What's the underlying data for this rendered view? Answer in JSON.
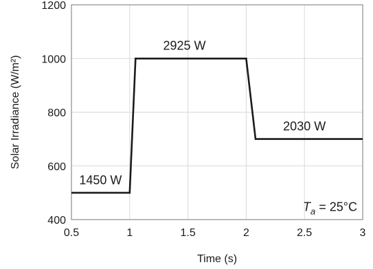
{
  "chart_data": {
    "type": "line",
    "xlabel": "Time (s)",
    "ylabel": "Solar Irradiance (W/m²)",
    "xlim": [
      0.5,
      3
    ],
    "ylim": [
      400,
      1200
    ],
    "xticks": [
      0.5,
      1,
      1.5,
      2,
      2.5,
      3
    ],
    "yticks": [
      400,
      600,
      800,
      1000,
      1200
    ],
    "xtick_labels": [
      "0.5",
      "1",
      "1.5",
      "2",
      "2.5",
      "3"
    ],
    "ytick_labels": [
      "400",
      "600",
      "800",
      "1000",
      "1200"
    ],
    "grid": true,
    "legend": "none",
    "series": [
      {
        "x": [
          0.5,
          1.0,
          1.05,
          2.0,
          2.08,
          3.0
        ],
        "y": [
          500,
          500,
          1000,
          1000,
          700,
          700
        ],
        "color": "#1a1a1a"
      }
    ],
    "annotations": [
      {
        "text": "1450 W",
        "x": 0.75,
        "y": 550
      },
      {
        "text": "2925 W",
        "x": 1.47,
        "y": 1050
      },
      {
        "text": "2030 W",
        "x": 2.5,
        "y": 750
      }
    ],
    "note": {
      "symbol": "T",
      "subscript": "a",
      "rest": " = 25°C"
    }
  }
}
